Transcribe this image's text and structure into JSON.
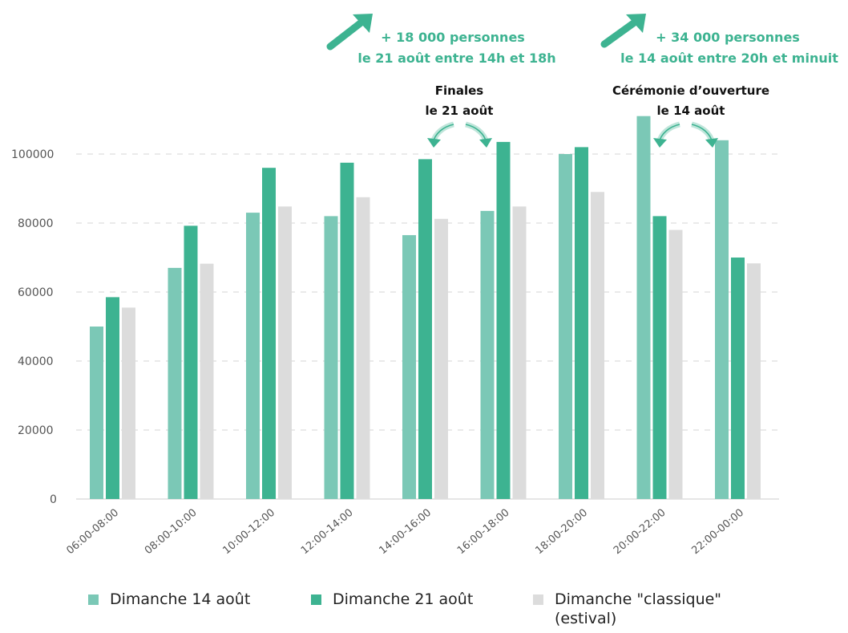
{
  "chart_data": {
    "type": "bar",
    "categories": [
      "06:00-08:00",
      "08:00-10:00",
      "10:00-12:00",
      "12:00-14:00",
      "14:00-16:00",
      "16:00-18:00",
      "18:00-20:00",
      "20:00-22:00",
      "22:00-00:00"
    ],
    "series": [
      {
        "name": "Dimanche 14 août",
        "color": "#7bc8b6",
        "values": [
          50000,
          67000,
          83000,
          82000,
          76500,
          83500,
          100000,
          111000,
          104000
        ]
      },
      {
        "name": "Dimanche 21 août",
        "color": "#3db391",
        "values": [
          58500,
          79200,
          96000,
          97500,
          98500,
          103500,
          102000,
          82000,
          70000
        ]
      },
      {
        "name": "Dimanche \"classique\" (estival)",
        "color": "#dcdcdc",
        "values": [
          55500,
          68200,
          84800,
          87500,
          81200,
          84800,
          89000,
          78000,
          68300
        ]
      }
    ],
    "yticks": [
      "0",
      "20000",
      "40000",
      "60000",
      "80000",
      "100000"
    ],
    "ylim": [
      0,
      115000
    ],
    "grid": true,
    "legend_position": "bottom",
    "annotations": {
      "increase_21": {
        "line1": "+ 18 000 personnes",
        "line2": "le 21 août entre 14h et 18h"
      },
      "increase_14": {
        "line1": "+ 34 000 personnes",
        "line2": "le 14 août entre 20h et minuit"
      },
      "finals": {
        "line1": "Finales",
        "line2": "le 21 août"
      },
      "opening": {
        "line1": "Cérémonie d’ouverture",
        "line2": "le 14 août"
      }
    },
    "legend": {
      "item1": "Dimanche 14 août",
      "item2": "Dimanche 21 août",
      "item3_line1": "Dimanche \"classique\"",
      "item3_line2": "(estival)"
    }
  }
}
